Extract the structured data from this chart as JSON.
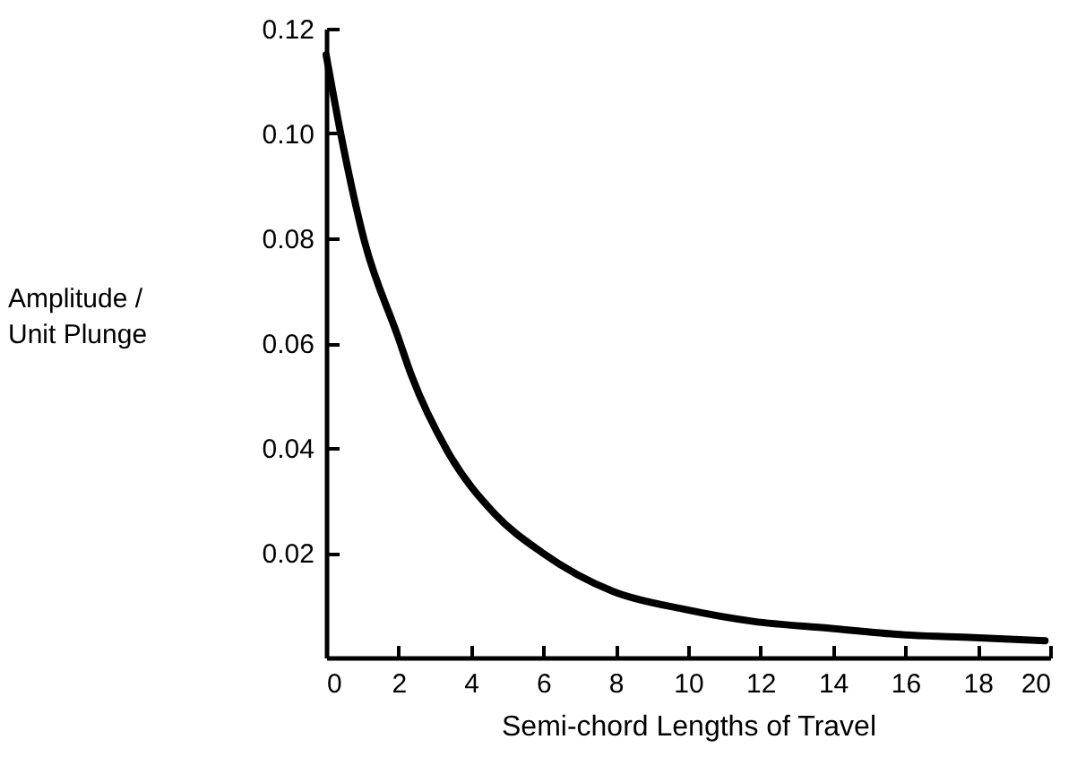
{
  "chart_data": {
    "type": "line",
    "xlabel": "Semi-chord Lengths of Travel",
    "ylabel": "Amplitude /\nUnit Plunge",
    "x": [
      0,
      0.41,
      1.06,
      1.97,
      2.37,
      3.35,
      4.66,
      5.97,
      7.93,
      9.9,
      11.8,
      13.9,
      15.85,
      17.9,
      19.86
    ],
    "series": [
      {
        "color": "#000000",
        "values": [
          0.115,
          0.0997,
          0.0794,
          0.0615,
          0.0536,
          0.0394,
          0.0274,
          0.02,
          0.0126,
          0.0092,
          0.0069,
          0.0056,
          0.0044,
          0.0038,
          0.0032
        ]
      }
    ],
    "xlim": [
      0,
      20
    ],
    "xticks": [
      0,
      2,
      4,
      6,
      8,
      10,
      12,
      14,
      16,
      18,
      20
    ],
    "ylim": [
      0,
      0.12
    ],
    "yticks": [
      {
        "value": 0.02,
        "label": "0.02"
      },
      {
        "value": 0.04,
        "label": "0.04"
      },
      {
        "value": 0.06,
        "label": "0.06"
      },
      {
        "value": 0.08,
        "label": "0.08"
      },
      {
        "value": 0.1,
        "label": "0.10"
      },
      {
        "value": 0.12,
        "label": "0.12"
      }
    ],
    "grid": false,
    "marker": "none",
    "line_style": "solid"
  }
}
